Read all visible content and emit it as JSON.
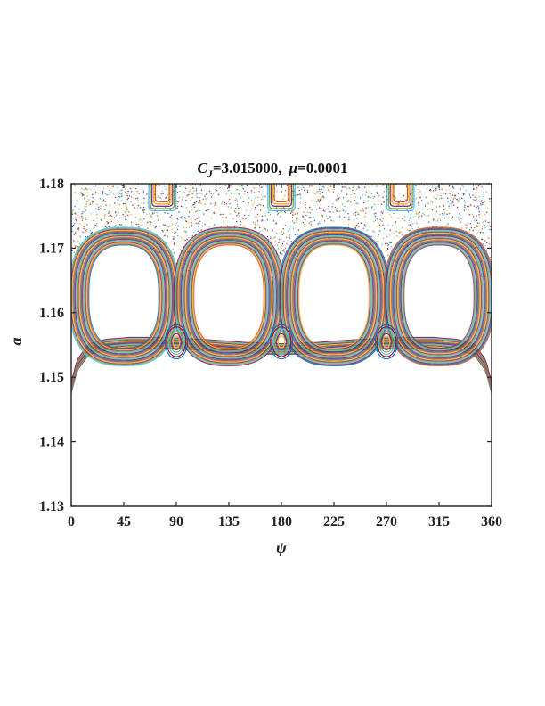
{
  "chart_data": {
    "type": "scatter",
    "title": {
      "cj_symbol": "C",
      "cj_subscript": "J",
      "cj_value": "=3.015000,",
      "mu_symbol": "μ",
      "mu_value": "=0.0001"
    },
    "xlabel": "ψ",
    "ylabel": "a",
    "xlim": [
      0,
      360
    ],
    "ylim": [
      1.13,
      1.18
    ],
    "xticks": [
      "0",
      "45",
      "90",
      "135",
      "180",
      "225",
      "270",
      "315",
      "360"
    ],
    "yticks": [
      "1.13",
      "1.14",
      "1.15",
      "1.16",
      "1.17",
      "1.18"
    ],
    "grid": false,
    "legend": "none",
    "lower_boundary": {
      "x": [
        0,
        5,
        15,
        30,
        50,
        70,
        90,
        120,
        150,
        180,
        210,
        240,
        270,
        290,
        310,
        330,
        345,
        355,
        360
      ],
      "y": [
        1.1475,
        1.151,
        1.1535,
        1.1542,
        1.1545,
        1.1545,
        1.1544,
        1.1541,
        1.1537,
        1.1535,
        1.1537,
        1.1541,
        1.1544,
        1.1545,
        1.1545,
        1.1542,
        1.1535,
        1.151,
        1.1475
      ]
    },
    "islands": [
      {
        "center_x": 45,
        "center_y": 1.162,
        "half_width_x": 30,
        "y_bottom": 1.1545,
        "y_top": 1.1705
      },
      {
        "center_x": 135,
        "center_y": 1.162,
        "half_width_x": 30,
        "y_bottom": 1.1545,
        "y_top": 1.1705
      },
      {
        "center_x": 225,
        "center_y": 1.162,
        "half_width_x": 30,
        "y_bottom": 1.1545,
        "y_top": 1.1705
      },
      {
        "center_x": 315,
        "center_y": 1.162,
        "half_width_x": 30,
        "y_bottom": 1.1545,
        "y_top": 1.1705
      }
    ],
    "upper_islands_x": [
      78,
      180,
      282
    ],
    "series_colors": [
      "#0072BD",
      "#D95319",
      "#EDB120",
      "#7E2F8E",
      "#77AC30",
      "#4DBEEE",
      "#A2142F"
    ]
  }
}
